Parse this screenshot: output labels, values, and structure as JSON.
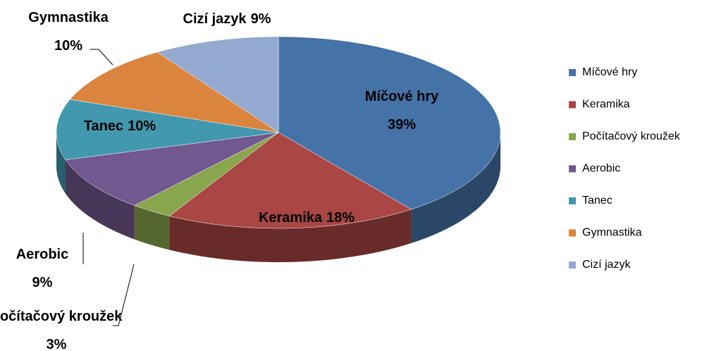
{
  "chart_data": {
    "type": "pie",
    "categories": [
      "Míčové hry",
      "Keramika",
      "Počítačový kroužek",
      "Aerobic",
      "Tanec",
      "Gymnastika",
      "Cizí jazyk"
    ],
    "values": [
      39,
      18,
      3,
      9,
      10,
      10,
      9
    ],
    "value_labels": [
      "39%",
      "18%",
      "3%",
      "9%",
      "10%",
      "10%",
      "9%"
    ],
    "colors": [
      "#4572a7",
      "#aa4643",
      "#89a54e",
      "#71588f",
      "#4198af",
      "#db843d",
      "#93a9cf"
    ],
    "legend": "right"
  }
}
